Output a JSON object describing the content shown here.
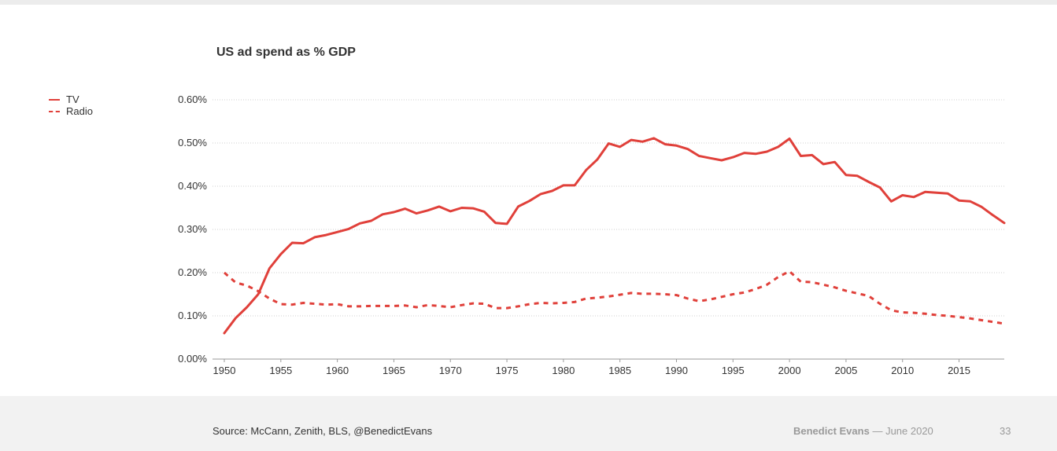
{
  "chart_data": {
    "type": "line",
    "title": "US ad spend as % GDP",
    "xlabel": "",
    "ylabel": "",
    "xlim": [
      1950,
      2019
    ],
    "ylim": [
      0,
      0.6
    ],
    "y_ticks": [
      "0.00%",
      "0.10%",
      "0.20%",
      "0.30%",
      "0.40%",
      "0.50%",
      "0.60%"
    ],
    "x_ticks": [
      "1950",
      "1955",
      "1960",
      "1965",
      "1970",
      "1975",
      "1980",
      "1985",
      "1990",
      "1995",
      "2000",
      "2005",
      "2010",
      "2015"
    ],
    "grid": "horizontal dotted",
    "legend_position": "top-left",
    "x": [
      1950,
      1951,
      1952,
      1953,
      1954,
      1955,
      1956,
      1957,
      1958,
      1959,
      1960,
      1961,
      1962,
      1963,
      1964,
      1965,
      1966,
      1967,
      1968,
      1969,
      1970,
      1971,
      1972,
      1973,
      1974,
      1975,
      1976,
      1977,
      1978,
      1979,
      1980,
      1981,
      1982,
      1983,
      1984,
      1985,
      1986,
      1987,
      1988,
      1989,
      1990,
      1991,
      1992,
      1993,
      1994,
      1995,
      1996,
      1997,
      1998,
      1999,
      2000,
      2001,
      2002,
      2003,
      2004,
      2005,
      2006,
      2007,
      2008,
      2009,
      2010,
      2011,
      2012,
      2013,
      2014,
      2015,
      2016,
      2017,
      2018,
      2019
    ],
    "series": [
      {
        "name": "TV",
        "style": "solid",
        "color": "#e0403a",
        "values": [
          0.06,
          0.095,
          0.12,
          0.15,
          0.21,
          0.243,
          0.269,
          0.268,
          0.282,
          0.287,
          0.294,
          0.301,
          0.314,
          0.32,
          0.335,
          0.34,
          0.348,
          0.337,
          0.344,
          0.353,
          0.342,
          0.35,
          0.349,
          0.341,
          0.315,
          0.313,
          0.353,
          0.366,
          0.382,
          0.389,
          0.402,
          0.402,
          0.437,
          0.462,
          0.499,
          0.491,
          0.507,
          0.503,
          0.511,
          0.497,
          0.494,
          0.486,
          0.47,
          0.465,
          0.46,
          0.467,
          0.477,
          0.475,
          0.48,
          0.491,
          0.51,
          0.47,
          0.472,
          0.451,
          0.456,
          0.426,
          0.424,
          0.41,
          0.397,
          0.365,
          0.379,
          0.375,
          0.387,
          0.385,
          0.383,
          0.367,
          0.365,
          0.352,
          0.333,
          0.315
        ]
      },
      {
        "name": "Radio",
        "style": "dashed",
        "color": "#e0403a",
        "values": [
          0.2,
          0.177,
          0.17,
          0.157,
          0.14,
          0.127,
          0.126,
          0.13,
          0.128,
          0.126,
          0.127,
          0.122,
          0.122,
          0.123,
          0.123,
          0.123,
          0.124,
          0.12,
          0.125,
          0.123,
          0.12,
          0.125,
          0.129,
          0.128,
          0.118,
          0.118,
          0.122,
          0.127,
          0.13,
          0.129,
          0.13,
          0.132,
          0.14,
          0.142,
          0.145,
          0.149,
          0.153,
          0.151,
          0.151,
          0.15,
          0.148,
          0.14,
          0.134,
          0.138,
          0.144,
          0.15,
          0.154,
          0.162,
          0.172,
          0.19,
          0.203,
          0.179,
          0.178,
          0.172,
          0.166,
          0.158,
          0.152,
          0.146,
          0.128,
          0.113,
          0.108,
          0.107,
          0.105,
          0.102,
          0.1,
          0.097,
          0.094,
          0.09,
          0.086,
          0.082
        ]
      }
    ]
  },
  "footer": {
    "source": "Source: McCann, Zenith, BLS, @BenedictEvans",
    "author": "Benedict Evans",
    "date": "— June 2020",
    "page_number": "33"
  },
  "colors": {
    "line": "#e0403a",
    "grid": "#cfcfcf",
    "footer_bg": "#f2f2f2"
  }
}
